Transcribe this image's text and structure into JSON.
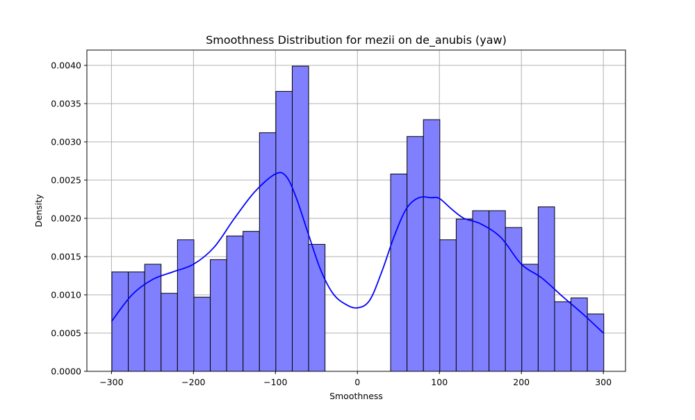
{
  "chart_data": {
    "type": "bar",
    "title": "Smoothness Distribution for mezii on de_anubis (yaw)",
    "xlabel": "Smoothness",
    "ylabel": "Density",
    "xlim": [
      -330,
      327
    ],
    "ylim": [
      0,
      0.0042
    ],
    "xticks": [
      -300,
      -200,
      -100,
      0,
      100,
      200,
      300
    ],
    "xtick_labels": [
      "−300",
      "−200",
      "−100",
      "0",
      "100",
      "200",
      "300"
    ],
    "yticks": [
      0,
      0.0005,
      0.001,
      0.0015,
      0.002,
      0.0025,
      0.003,
      0.0035,
      0.004
    ],
    "ytick_labels": [
      "0.0000",
      "0.0005",
      "0.0010",
      "0.0015",
      "0.0020",
      "0.0025",
      "0.0030",
      "0.0035",
      "0.0040"
    ],
    "grid": true,
    "bin_edges": [
      -299.5,
      -279.5,
      -259.5,
      -239.5,
      -219.5,
      -199.5,
      -179.5,
      -159.5,
      -139.5,
      -119.5,
      -99.5,
      -79.5,
      -59.5,
      -39.5,
      -19.5,
      0.5,
      20.5,
      40.5,
      60.5,
      80.5,
      100.5,
      120.5,
      140.5,
      160.5,
      180.5,
      200.5,
      220.5,
      240.5,
      260.5,
      280.5,
      300.5
    ],
    "densities": [
      0.0013,
      0.0013,
      0.0014,
      0.00102,
      0.00172,
      0.00097,
      0.00146,
      0.00177,
      0.00183,
      0.00312,
      0.00366,
      0.00399,
      0.00166,
      0,
      0,
      0,
      0,
      0.00258,
      0.00307,
      0.00329,
      0.00172,
      0.00199,
      0.0021,
      0.0021,
      0.00188,
      0.0014,
      0.00215,
      0.00091,
      0.00096,
      0.00075
    ],
    "kde": {
      "x": [
        -300,
        -275,
        -250,
        -225,
        -200,
        -175,
        -150,
        -125,
        -100,
        -87,
        -75,
        -60,
        -45,
        -30,
        -15,
        0,
        15,
        30,
        45,
        60,
        75,
        90,
        100,
        115,
        130,
        150,
        175,
        200,
        225,
        250,
        275,
        300
      ],
      "y": [
        0.00065,
        0.001,
        0.0012,
        0.0013,
        0.0014,
        0.00162,
        0.002,
        0.00235,
        0.00258,
        0.00255,
        0.00228,
        0.0018,
        0.00133,
        0.00102,
        0.00088,
        0.00083,
        0.00093,
        0.00131,
        0.00177,
        0.00213,
        0.00227,
        0.00227,
        0.00226,
        0.00212,
        0.002,
        0.00193,
        0.00175,
        0.0014,
        0.00122,
        0.00098,
        0.00075,
        0.0005
      ]
    },
    "bar_color": "#8080ff",
    "bar_edge_color": "#000000",
    "kde_color": "#0000ff"
  }
}
